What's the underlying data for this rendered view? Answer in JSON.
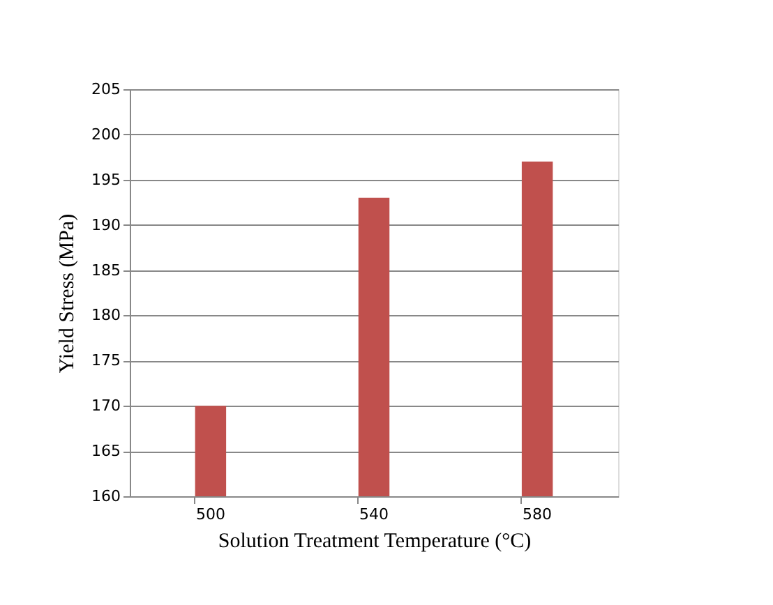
{
  "chart_data": {
    "type": "bar",
    "xlabel": "Solution Treatment Temperature (°C)",
    "ylabel": "Yield Stress (MPa)",
    "categories": [
      "500",
      "540",
      "580"
    ],
    "values": [
      170,
      193,
      197
    ],
    "color": "#c0504d",
    "ylim": [
      160,
      205
    ],
    "yticks": [
      160,
      165,
      170,
      175,
      180,
      185,
      190,
      195,
      200,
      205
    ],
    "grid": "y"
  }
}
